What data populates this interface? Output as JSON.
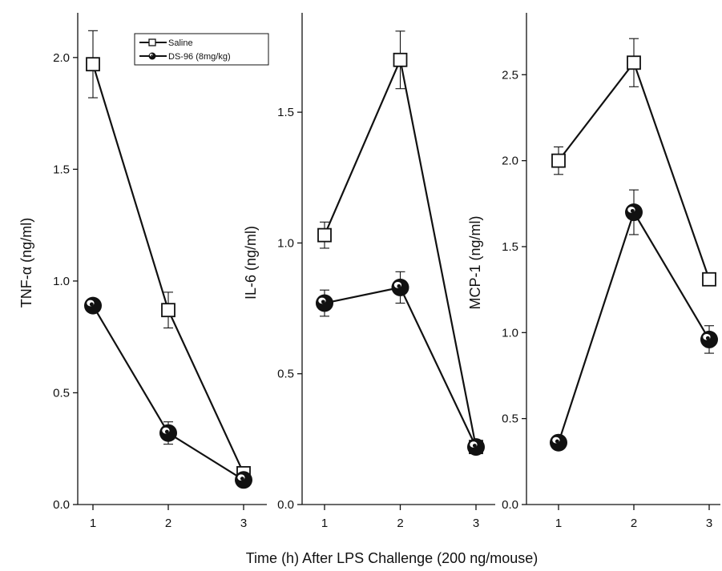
{
  "chart_data": {
    "type": "line",
    "xlabel": "Time (h) After LPS Challenge (200 ng/mouse)",
    "legend": {
      "placement": "top-left of first panel",
      "entries": [
        {
          "name": "Saline",
          "marker": "open-square"
        },
        {
          "name": "DS-96 (8mg/kg)",
          "marker": "filled-circle"
        }
      ]
    },
    "panels": [
      {
        "ylabel": "TNF-α (ng/ml)",
        "x": [
          1,
          2,
          3
        ],
        "xticks": [
          "1",
          "2",
          "3"
        ],
        "ylim": [
          0,
          2.2
        ],
        "yticks": [
          0.0,
          0.5,
          1.0,
          1.5,
          2.0
        ],
        "ytick_labels": [
          "0.0",
          "0.5",
          "1.0",
          "1.5",
          "2.0"
        ],
        "series": [
          {
            "name": "Saline",
            "values": [
              1.97,
              0.87,
              0.14
            ],
            "errors": [
              0.15,
              0.08,
              0.01
            ]
          },
          {
            "name": "DS-96 (8mg/kg)",
            "values": [
              0.89,
              0.32,
              0.11
            ],
            "errors": [
              0.0,
              0.05,
              0.0
            ]
          }
        ]
      },
      {
        "ylabel": "IL-6 (ng/ml)",
        "x": [
          1,
          2,
          3
        ],
        "xticks": [
          "1",
          "2",
          "3"
        ],
        "ylim": [
          0,
          1.88
        ],
        "yticks": [
          0.0,
          0.5,
          1.0,
          1.5
        ],
        "ytick_labels": [
          "0.0",
          "0.5",
          "1.0",
          "1.5"
        ],
        "series": [
          {
            "name": "Saline",
            "values": [
              1.03,
              1.7,
              0.22
            ],
            "errors": [
              0.05,
              0.11,
              0.01
            ]
          },
          {
            "name": "DS-96 (8mg/kg)",
            "values": [
              0.77,
              0.83,
              0.22
            ],
            "errors": [
              0.05,
              0.06,
              0.0
            ]
          }
        ]
      },
      {
        "ylabel": "MCP-1 (ng/ml)",
        "x": [
          1,
          2,
          3
        ],
        "xticks": [
          "1",
          "2",
          "3"
        ],
        "ylim": [
          0,
          2.86
        ],
        "yticks": [
          0.0,
          0.5,
          1.0,
          1.5,
          2.0,
          2.5
        ],
        "ytick_labels": [
          "0.0",
          "0.5",
          "1.0",
          "1.5",
          "2.0",
          "2.5"
        ],
        "series": [
          {
            "name": "Saline",
            "values": [
              2.0,
              2.57,
              1.31
            ],
            "errors": [
              0.08,
              0.14,
              0.0
            ]
          },
          {
            "name": "DS-96 (8mg/kg)",
            "values": [
              0.36,
              1.7,
              0.96
            ],
            "errors": [
              0.0,
              0.13,
              0.08
            ]
          }
        ]
      }
    ],
    "grid": false
  }
}
